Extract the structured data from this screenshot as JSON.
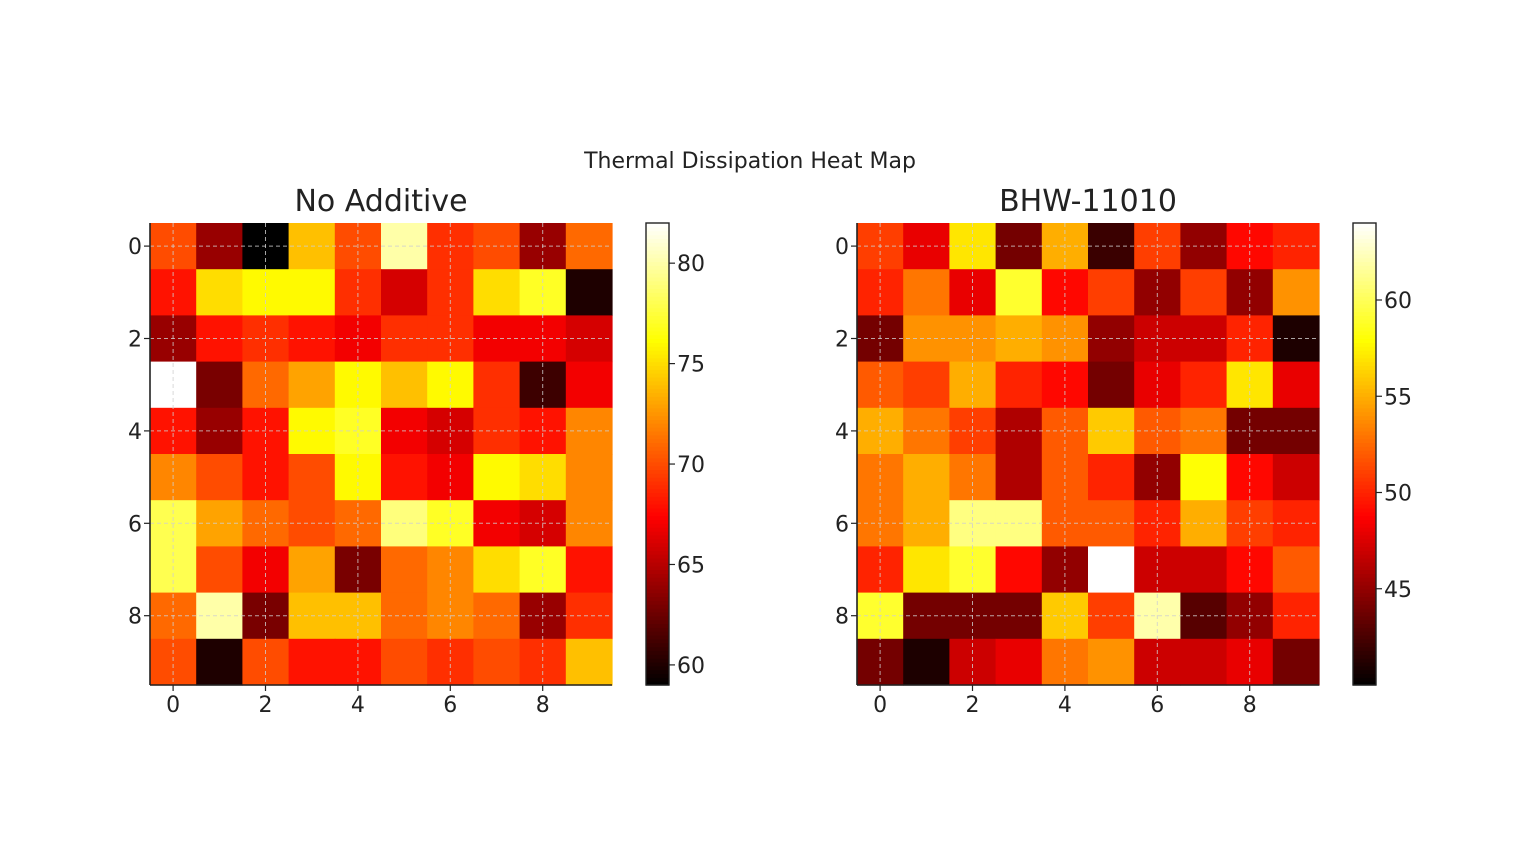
{
  "chart_data": {
    "type": "heatmap",
    "title": "Thermal Dissipation Heat Map",
    "colormap": "hot",
    "grid": true,
    "panels": [
      {
        "title": "No Additive",
        "vmin": 59,
        "vmax": 82,
        "colorbar_ticks": [
          60,
          65,
          70,
          75,
          80
        ],
        "x_ticks": [
          0,
          2,
          4,
          6,
          8
        ],
        "y_ticks": [
          0,
          2,
          4,
          6,
          8
        ],
        "values": [
          [
            70,
            64,
            59,
            74,
            70,
            80,
            69,
            70,
            64,
            71
          ],
          [
            68,
            75,
            76,
            76,
            69,
            66,
            69,
            75,
            77,
            60
          ],
          [
            64,
            68,
            69,
            68,
            67,
            69,
            69,
            67,
            67,
            66
          ],
          [
            82,
            63,
            71,
            73,
            76,
            74,
            76,
            69,
            61,
            67
          ],
          [
            68,
            64,
            68,
            76,
            77,
            67,
            66,
            69,
            68,
            72
          ],
          [
            72,
            70,
            68,
            70,
            76,
            68,
            67,
            76,
            75,
            72
          ],
          [
            78,
            73,
            71,
            70,
            71,
            79,
            77,
            67,
            66,
            72
          ],
          [
            78,
            70,
            67,
            73,
            63,
            71,
            72,
            75,
            77,
            68
          ],
          [
            71,
            80,
            63,
            74,
            74,
            71,
            72,
            71,
            64,
            69
          ],
          [
            70,
            60,
            70,
            68,
            68,
            70,
            69,
            70,
            69,
            74
          ]
        ]
      },
      {
        "title": "BHW-11010",
        "vmin": 40,
        "vmax": 64,
        "colorbar_ticks": [
          45,
          50,
          55,
          60
        ],
        "x_ticks": [
          0,
          2,
          4,
          6,
          8
        ],
        "y_ticks": [
          0,
          2,
          4,
          6,
          8
        ],
        "values": [
          [
            51,
            48,
            57,
            44,
            55,
            42,
            51,
            45,
            49,
            50
          ],
          [
            50,
            53,
            48,
            59,
            49,
            51,
            45,
            51,
            45,
            54
          ],
          [
            44,
            54,
            54,
            55,
            54,
            45,
            47,
            47,
            50,
            41
          ],
          [
            52,
            51,
            55,
            50,
            49,
            44,
            48,
            50,
            57,
            48
          ],
          [
            55,
            53,
            51,
            46,
            52,
            56,
            52,
            53,
            44,
            44
          ],
          [
            53,
            55,
            53,
            46,
            52,
            50,
            45,
            58,
            49,
            47
          ],
          [
            53,
            55,
            61,
            61,
            52,
            52,
            50,
            55,
            51,
            50
          ],
          [
            50,
            57,
            59,
            49,
            45,
            64,
            47,
            47,
            49,
            52
          ],
          [
            59,
            44,
            44,
            44,
            56,
            51,
            62,
            43,
            45,
            50
          ],
          [
            44,
            41,
            47,
            48,
            53,
            54,
            47,
            47,
            48,
            44
          ]
        ]
      }
    ]
  }
}
